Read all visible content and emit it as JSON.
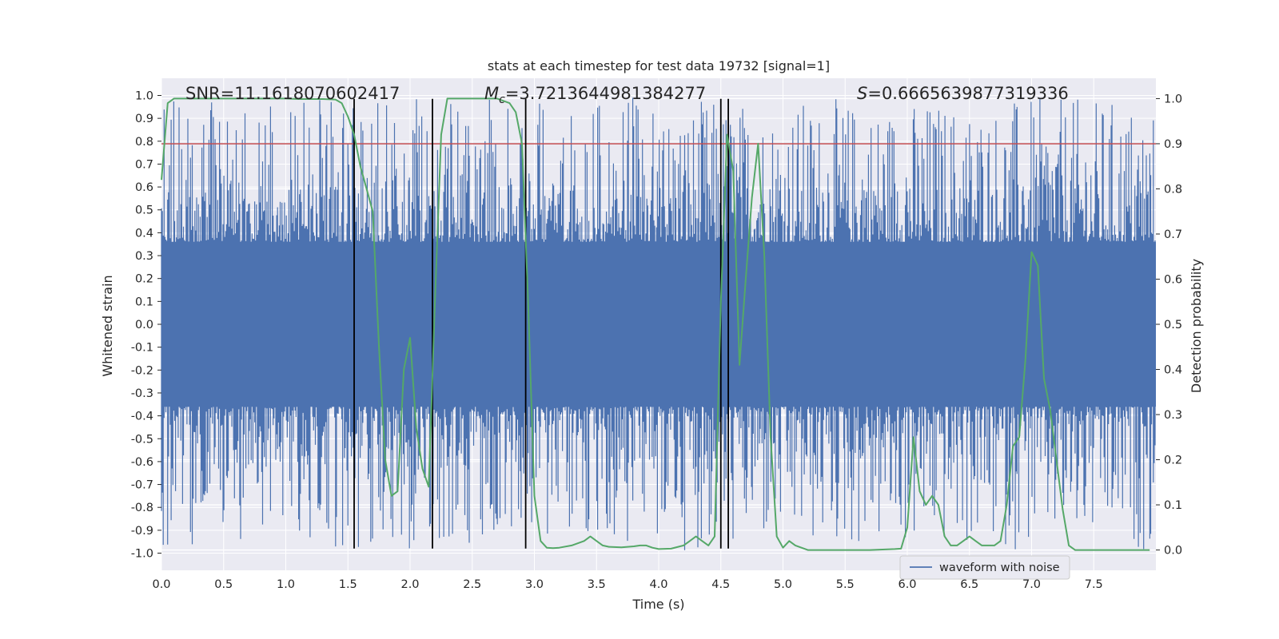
{
  "chart_data": {
    "type": "line",
    "title": "stats at each timestep for test data 19732 [signal=1]",
    "xlabel": "Time (s)",
    "ylabel": "Whitened strain",
    "y2label": "Detection probability",
    "xlim": [
      0.0,
      8.0
    ],
    "ylim": [
      -1.075,
      1.075
    ],
    "y2lim": [
      -0.045,
      1.045
    ],
    "x_ticks": [
      "0.0",
      "0.5",
      "1.0",
      "1.5",
      "2.0",
      "2.5",
      "3.0",
      "3.5",
      "4.0",
      "4.5",
      "5.0",
      "5.5",
      "6.0",
      "6.5",
      "7.0",
      "7.5"
    ],
    "y_ticks": [
      "1.0",
      "0.9",
      "0.8",
      "0.7",
      "0.6",
      "0.5",
      "0.4",
      "0.3",
      "0.2",
      "0.1",
      "0.0",
      "-0.1",
      "-0.2",
      "-0.3",
      "-0.4",
      "-0.5",
      "-0.6",
      "-0.7",
      "-0.8",
      "-0.9",
      "-1.0"
    ],
    "y2_ticks": [
      "1.0",
      "0.9",
      "0.8",
      "0.7",
      "0.6",
      "0.5",
      "0.4",
      "0.3",
      "0.2",
      "0.1",
      "0.0"
    ],
    "grid": true,
    "legend": {
      "placement": "lower-right",
      "entries": [
        "waveform with noise"
      ]
    },
    "annotations": {
      "snr": "SNR=11.1618070602417",
      "mc_sym": "M",
      "mc_sub": "c",
      "mc_val": "=3.7213644981384277",
      "s_sym": "S",
      "s_val": "=0.6665639877319336"
    },
    "threshold": {
      "value": 0.9,
      "axis": "y2",
      "color": "#c44e52"
    },
    "vlines": [
      1.55,
      2.18,
      2.93,
      4.5,
      4.56
    ],
    "vline_range": [
      -0.98,
      0.985
    ],
    "series": [
      {
        "name": "waveform with noise",
        "axis": "y",
        "color": "#4c72b0",
        "style": "dense-noise",
        "x_range": [
          0.0,
          8.0
        ],
        "core_amplitude": 0.36,
        "peak_amplitude": 0.99
      },
      {
        "axis": "y2",
        "color": "#55a868",
        "x": [
          0.0,
          0.05,
          0.1,
          0.2,
          0.3,
          0.4,
          0.5,
          0.6,
          0.7,
          0.8,
          0.9,
          1.0,
          1.1,
          1.2,
          1.3,
          1.4,
          1.45,
          1.5,
          1.55,
          1.6,
          1.65,
          1.7,
          1.75,
          1.8,
          1.85,
          1.9,
          1.95,
          2.0,
          2.05,
          2.1,
          2.15,
          2.2,
          2.25,
          2.3,
          2.4,
          2.5,
          2.6,
          2.7,
          2.8,
          2.85,
          2.9,
          2.95,
          3.0,
          3.05,
          3.1,
          3.15,
          3.2,
          3.3,
          3.4,
          3.45,
          3.5,
          3.55,
          3.6,
          3.7,
          3.8,
          3.85,
          3.9,
          3.95,
          4.0,
          4.1,
          4.2,
          4.25,
          4.3,
          4.35,
          4.4,
          4.45,
          4.5,
          4.55,
          4.6,
          4.65,
          4.7,
          4.75,
          4.8,
          4.85,
          4.9,
          4.95,
          5.0,
          5.05,
          5.1,
          5.2,
          5.3,
          5.4,
          5.5,
          5.6,
          5.7,
          5.8,
          5.9,
          5.95,
          6.0,
          6.05,
          6.1,
          6.15,
          6.2,
          6.25,
          6.3,
          6.35,
          6.4,
          6.45,
          6.5,
          6.55,
          6.6,
          6.65,
          6.7,
          6.75,
          6.8,
          6.85,
          6.9,
          6.95,
          7.0,
          7.05,
          7.1,
          7.15,
          7.2,
          7.25,
          7.3,
          7.35,
          7.4,
          7.5,
          7.6,
          7.7,
          7.8,
          7.9,
          7.95
        ],
        "y": [
          0.82,
          0.99,
          1.0,
          1.0,
          1.0,
          1.0,
          1.0,
          1.0,
          1.0,
          1.0,
          1.0,
          1.0,
          0.999,
          0.999,
          0.999,
          0.998,
          0.99,
          0.96,
          0.92,
          0.85,
          0.8,
          0.75,
          0.45,
          0.2,
          0.12,
          0.13,
          0.4,
          0.47,
          0.27,
          0.18,
          0.14,
          0.55,
          0.92,
          1.0,
          1.0,
          1.0,
          1.0,
          1.0,
          0.99,
          0.97,
          0.9,
          0.55,
          0.12,
          0.02,
          0.005,
          0.004,
          0.005,
          0.01,
          0.02,
          0.03,
          0.02,
          0.01,
          0.007,
          0.006,
          0.008,
          0.01,
          0.01,
          0.005,
          0.002,
          0.003,
          0.01,
          0.02,
          0.03,
          0.02,
          0.01,
          0.03,
          0.55,
          0.92,
          0.84,
          0.41,
          0.6,
          0.78,
          0.9,
          0.65,
          0.25,
          0.03,
          0.005,
          0.02,
          0.01,
          0.0,
          0.0,
          0.0,
          0.0,
          0.0,
          0.0,
          0.001,
          0.002,
          0.003,
          0.05,
          0.25,
          0.13,
          0.1,
          0.12,
          0.1,
          0.03,
          0.01,
          0.01,
          0.02,
          0.03,
          0.02,
          0.01,
          0.01,
          0.01,
          0.02,
          0.1,
          0.23,
          0.25,
          0.42,
          0.66,
          0.63,
          0.38,
          0.31,
          0.2,
          0.09,
          0.01,
          0.0,
          0.0,
          0.0,
          0.0,
          0.0,
          0.0,
          0.0,
          0.0
        ]
      }
    ]
  }
}
